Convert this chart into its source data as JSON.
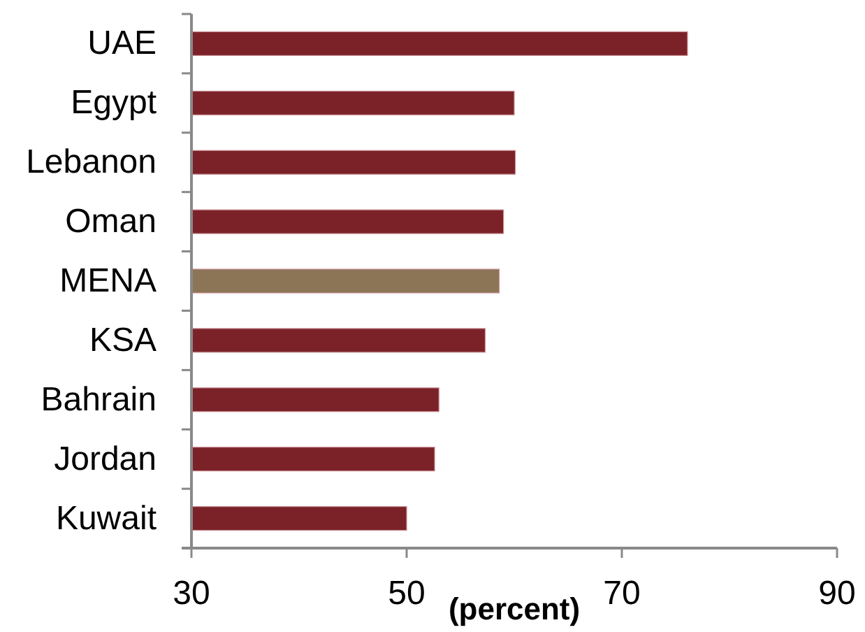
{
  "chart_data": {
    "type": "bar",
    "orientation": "horizontal",
    "categories": [
      "UAE",
      "Egypt",
      "Lebanon",
      "Oman",
      "MENA",
      "KSA",
      "Bahrain",
      "Jordan",
      "Kuwait"
    ],
    "values": [
      76.1,
      60.0,
      60.1,
      59.0,
      58.6,
      57.3,
      53.0,
      52.6,
      50.0
    ],
    "colors": [
      "#7b2229",
      "#7b2229",
      "#7b2229",
      "#7b2229",
      "#8b7556",
      "#7b2229",
      "#7b2229",
      "#7b2229",
      "#7b2229"
    ],
    "xlabel": "(percent)",
    "xlim": [
      30,
      90
    ],
    "xticks": [
      30,
      50,
      70,
      90
    ]
  }
}
